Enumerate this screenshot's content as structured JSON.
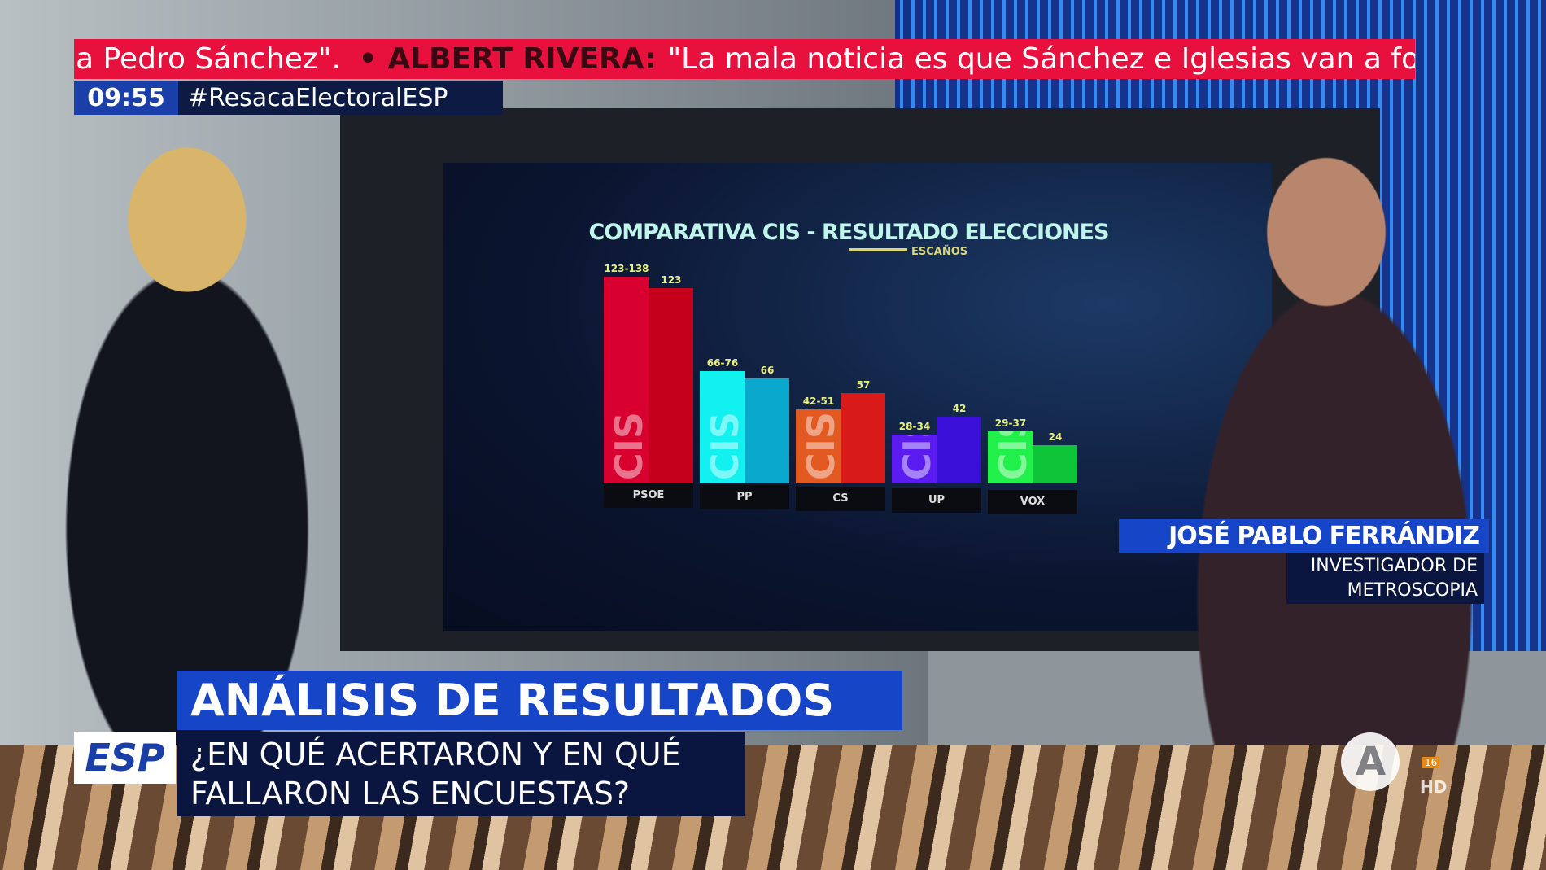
{
  "ticker": {
    "lead": "a Pedro Sánchez\".",
    "speaker": "• ALBERT RIVERA:",
    "quote": "\"La mala noticia es que Sánchez e Iglesias van a fo"
  },
  "clock": "09:55",
  "hashtag": "#ResacaElectoralESP",
  "headline": "ANÁLISIS DE RESULTADOS",
  "program_logo": "ESP",
  "subtitle": {
    "line1": "¿EN QUÉ ACERTARON Y EN QUÉ",
    "line2": "FALLARON LAS ENCUESTAS?"
  },
  "guest": {
    "name": "JOSÉ PABLO FERRÁNDIZ",
    "role_line1": "INVESTIGADOR DE",
    "role_line2": "METROSCOPIA"
  },
  "channel": {
    "logo": "Antena 3",
    "hd": "HD",
    "rating": "16"
  },
  "chart_data": {
    "type": "bar",
    "title": "COMPARATIVA CIS - RESULTADO ELECCIONES",
    "legend": "ESCAÑOS",
    "watermark": "CIS",
    "categories": [
      "PSOE",
      "PP",
      "CS",
      "UP",
      "VOX"
    ],
    "series": [
      {
        "name": "CIS",
        "labels": [
          "123-138",
          "66-76",
          "42-51",
          "28-34",
          "29-37"
        ],
        "ranges": [
          [
            123,
            138
          ],
          [
            66,
            76
          ],
          [
            42,
            51
          ],
          [
            28,
            34
          ],
          [
            29,
            37
          ]
        ]
      },
      {
        "name": "RESULTADO",
        "labels": [
          "123",
          "66",
          "57",
          "42",
          "24"
        ],
        "values": [
          123,
          66,
          57,
          42,
          24
        ]
      }
    ],
    "colors": {
      "cis": [
        "#d8002f",
        "#13f0f0",
        "#e25a22",
        "#5a1cf0",
        "#22f04a"
      ],
      "result": [
        "#c4001c",
        "#0aa8cc",
        "#d81a18",
        "#3a10d8",
        "#10c43a"
      ]
    }
  }
}
